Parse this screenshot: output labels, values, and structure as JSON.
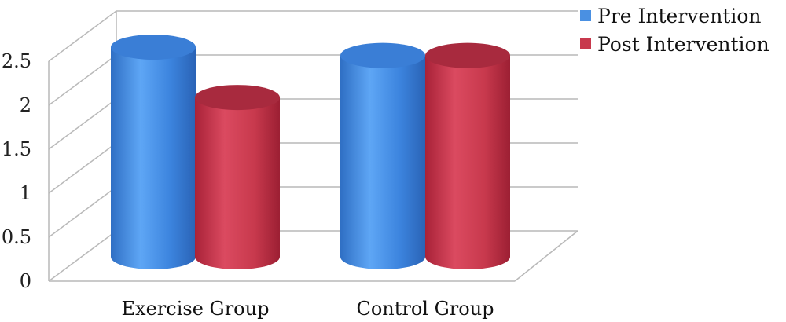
{
  "chart_data": {
    "type": "bar",
    "categories": [
      "Exercise Group",
      "Control Group"
    ],
    "series": [
      {
        "name": "Pre Intervention",
        "values": [
          2.5,
          2.4
        ],
        "color": "#4a90e2"
      },
      {
        "name": "Post Intervention",
        "values": [
          1.9,
          2.4
        ],
        "color": "#c8394d"
      }
    ],
    "ylim": [
      0,
      2.5
    ],
    "yticks": [
      "0",
      "0.5",
      "1",
      "1.5",
      "2",
      "2.5"
    ],
    "grid": true,
    "legend": "top-right",
    "style": "3d-cylinder"
  }
}
